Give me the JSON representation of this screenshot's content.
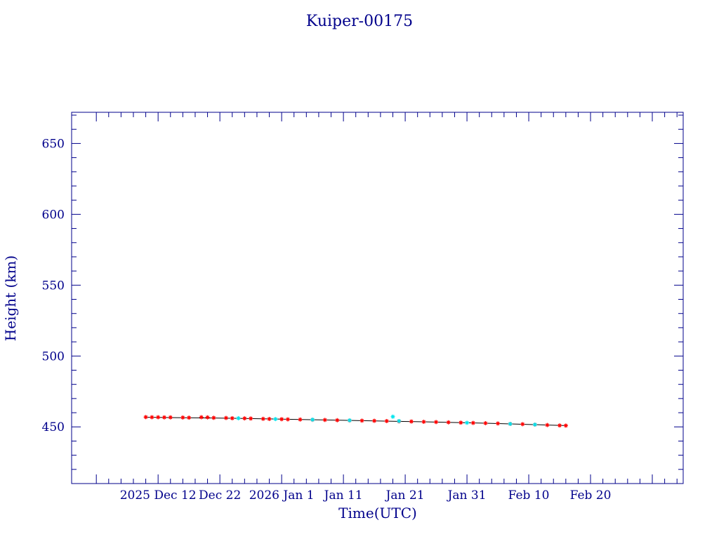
{
  "chart_data": {
    "type": "scatter",
    "title": "Kuiper-00175",
    "xlabel": "Time(UTC)",
    "ylabel": "Height (km)",
    "x_ticks": [
      {
        "label": "2025 Dec 12",
        "x": "2025-12-12"
      },
      {
        "label": "Dec 22",
        "x": "2025-12-22"
      },
      {
        "label": "2026 Jan  1",
        "x": "2026-01-01"
      },
      {
        "label": "Jan 11",
        "x": "2026-01-11"
      },
      {
        "label": "Jan 21",
        "x": "2026-01-21"
      },
      {
        "label": "Jan 31",
        "x": "2026-01-31"
      },
      {
        "label": "Feb 10",
        "x": "2026-02-10"
      },
      {
        "label": "Feb 20",
        "x": "2026-02-20"
      }
    ],
    "y_ticks": [
      450,
      500,
      550,
      600,
      650
    ],
    "xlim": [
      "2025-11-28",
      "2026-03-07"
    ],
    "ylim": [
      410,
      672
    ],
    "grid": false,
    "colors": {
      "axes": "#00008b",
      "mean": "#000000",
      "red_series": "#ff0000",
      "cyan_series": "#00e5ee"
    },
    "series": [
      {
        "marker": "line",
        "color": "#000000",
        "points": [
          [
            "2025-12-10",
            456.8
          ],
          [
            "2025-12-15",
            456.5
          ],
          [
            "2025-12-20",
            456.3
          ],
          [
            "2025-12-25",
            456.0
          ],
          [
            "2025-12-30",
            455.6
          ],
          [
            "2026-01-04",
            455.2
          ],
          [
            "2026-01-09",
            454.8
          ],
          [
            "2026-01-14",
            454.4
          ],
          [
            "2026-01-19",
            454.0
          ],
          [
            "2026-01-24",
            453.6
          ],
          [
            "2026-01-29",
            453.1
          ],
          [
            "2026-02-03",
            452.6
          ],
          [
            "2026-02-08",
            452.0
          ],
          [
            "2026-02-13",
            451.3
          ],
          [
            "2026-02-16",
            450.9
          ]
        ]
      },
      {
        "marker": "star",
        "color": "#ff0000",
        "points": [
          [
            "2025-12-10",
            456.9
          ],
          [
            "2025-12-11",
            456.8
          ],
          [
            "2025-12-12",
            456.8
          ],
          [
            "2025-12-13",
            456.7
          ],
          [
            "2025-12-14",
            456.7
          ],
          [
            "2025-12-16",
            456.6
          ],
          [
            "2025-12-17",
            456.5
          ],
          [
            "2025-12-19",
            456.8
          ],
          [
            "2025-12-20",
            456.7
          ],
          [
            "2025-12-21",
            456.4
          ],
          [
            "2025-12-23",
            456.3
          ],
          [
            "2025-12-24",
            456.1
          ],
          [
            "2025-12-26",
            456.0
          ],
          [
            "2025-12-27",
            455.9
          ],
          [
            "2025-12-29",
            455.7
          ],
          [
            "2025-12-30",
            455.6
          ],
          [
            "2026-01-01",
            455.4
          ],
          [
            "2026-01-02",
            455.3
          ],
          [
            "2026-01-04",
            455.2
          ],
          [
            "2026-01-06",
            455.0
          ],
          [
            "2026-01-08",
            454.9
          ],
          [
            "2026-01-10",
            454.7
          ],
          [
            "2026-01-12",
            454.5
          ],
          [
            "2026-01-14",
            454.4
          ],
          [
            "2026-01-16",
            454.3
          ],
          [
            "2026-01-18",
            454.1
          ],
          [
            "2026-01-20",
            453.9
          ],
          [
            "2026-01-22",
            453.8
          ],
          [
            "2026-01-24",
            453.6
          ],
          [
            "2026-01-26",
            453.4
          ],
          [
            "2026-01-28",
            453.2
          ],
          [
            "2026-01-30",
            453.0
          ],
          [
            "2026-02-01",
            452.8
          ],
          [
            "2026-02-03",
            452.6
          ],
          [
            "2026-02-05",
            452.4
          ],
          [
            "2026-02-07",
            452.1
          ],
          [
            "2026-02-09",
            451.9
          ],
          [
            "2026-02-11",
            451.6
          ],
          [
            "2026-02-13",
            451.3
          ],
          [
            "2026-02-15",
            451.0
          ],
          [
            "2026-02-16",
            450.9
          ]
        ]
      },
      {
        "marker": "star",
        "color": "#00e5ee",
        "points": [
          [
            "2025-12-25",
            456.1
          ],
          [
            "2025-12-31",
            455.5
          ],
          [
            "2026-01-06",
            455.1
          ],
          [
            "2026-01-12",
            454.6
          ],
          [
            "2026-01-19",
            457.2
          ],
          [
            "2026-01-20",
            454.1
          ],
          [
            "2026-01-31",
            452.9
          ],
          [
            "2026-02-07",
            452.1
          ],
          [
            "2026-02-11",
            451.6
          ]
        ]
      }
    ]
  }
}
